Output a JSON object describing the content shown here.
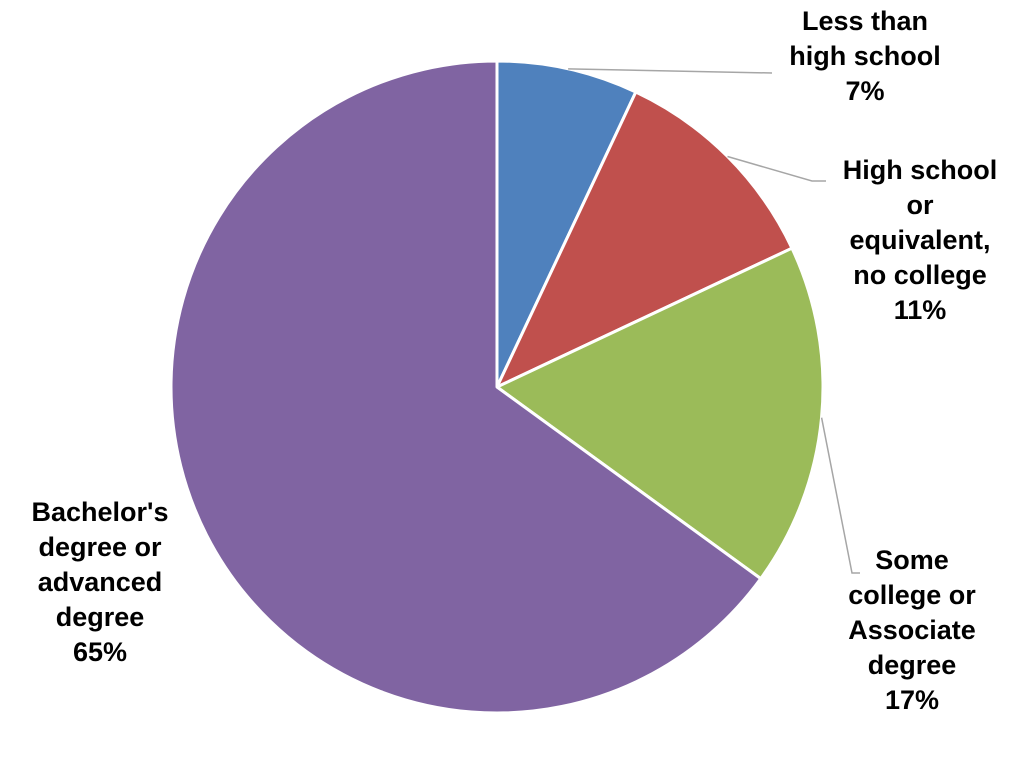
{
  "chart_data": {
    "type": "pie",
    "slices": [
      {
        "label_lines": [
          "Less than",
          "high school"
        ],
        "percent_label": "7%",
        "value": 7,
        "color": "#4F81BD"
      },
      {
        "label_lines": [
          "High school",
          "or",
          "equivalent,",
          "no college"
        ],
        "percent_label": "11%",
        "value": 11,
        "color": "#C0504D"
      },
      {
        "label_lines": [
          "Some",
          "college or",
          "Associate",
          "degree"
        ],
        "percent_label": "17%",
        "value": 17,
        "color": "#9BBB59"
      },
      {
        "label_lines": [
          "Bachelor's",
          "degree or",
          "advanced",
          "degree"
        ],
        "percent_label": "65%",
        "value": 65,
        "color": "#8064A2"
      }
    ],
    "start_angle": "12 o'clock",
    "direction": "clockwise",
    "leader_line_color": "#A6A6A6"
  }
}
